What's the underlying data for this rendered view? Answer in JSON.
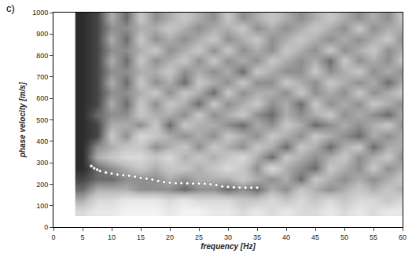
{
  "chart_data": {
    "type": "heatmap",
    "panel_label": "c)",
    "x_label": "frequency [Hz]",
    "y_label": "phase velocity [m/s]",
    "xlim": [
      0,
      60
    ],
    "ylim": [
      0,
      1000
    ],
    "xticks": [
      0,
      5,
      10,
      15,
      20,
      25,
      30,
      35,
      40,
      45,
      50,
      55,
      60
    ],
    "yticks": [
      0,
      100,
      200,
      300,
      400,
      500,
      600,
      700,
      800,
      900,
      1000
    ],
    "heatmap": {
      "x": [
        5,
        7.5,
        10,
        12.5,
        15,
        17.5,
        20,
        22.5,
        25,
        27.5,
        30,
        32.5,
        35,
        37.5,
        40,
        42.5,
        45,
        47.5,
        50,
        52.5,
        55,
        57.5,
        60
      ],
      "y": [
        75,
        125,
        175,
        225,
        275,
        325,
        375,
        425,
        475,
        525,
        575,
        625,
        675,
        725,
        775,
        825,
        875,
        925,
        975
      ],
      "z": [
        [
          0.3,
          0.2,
          0.2,
          0.1,
          0.1,
          0.1,
          0.2,
          0.1,
          0.1,
          0.2,
          0.2,
          0.3,
          0.2,
          0.3,
          0.2,
          0.3,
          0.3,
          0.2,
          0.3,
          0.2,
          0.3,
          0.2,
          0.2
        ],
        [
          0.5,
          0.3,
          0.3,
          0.2,
          0.2,
          0.2,
          0.3,
          0.2,
          0.3,
          0.3,
          0.3,
          0.4,
          0.4,
          0.3,
          0.4,
          0.3,
          0.4,
          0.3,
          0.4,
          0.3,
          0.3,
          0.4,
          0.3
        ],
        [
          0.7,
          0.5,
          0.5,
          0.5,
          0.6,
          0.6,
          0.6,
          0.7,
          0.6,
          0.6,
          0.7,
          0.6,
          0.7,
          0.5,
          0.6,
          0.4,
          0.5,
          0.6,
          0.5,
          0.4,
          0.5,
          0.4,
          0.5
        ],
        [
          0.8,
          0.7,
          0.7,
          0.6,
          0.6,
          0.6,
          0.5,
          0.6,
          0.5,
          0.5,
          0.5,
          0.4,
          0.5,
          0.6,
          0.5,
          0.7,
          0.4,
          0.5,
          0.6,
          0.5,
          0.6,
          0.5,
          0.4
        ],
        [
          0.9,
          0.7,
          0.6,
          0.5,
          0.4,
          0.5,
          0.4,
          0.4,
          0.5,
          0.4,
          0.3,
          0.4,
          0.6,
          0.3,
          0.5,
          0.6,
          0.7,
          0.4,
          0.5,
          0.6,
          0.4,
          0.6,
          0.5
        ],
        [
          0.9,
          0.5,
          0.4,
          0.3,
          0.3,
          0.4,
          0.3,
          0.5,
          0.4,
          0.5,
          0.4,
          0.3,
          0.5,
          0.7,
          0.4,
          0.5,
          0.6,
          0.5,
          0.4,
          0.6,
          0.5,
          0.4,
          0.6
        ],
        [
          0.9,
          0.6,
          0.5,
          0.4,
          0.4,
          0.6,
          0.5,
          0.4,
          0.6,
          0.4,
          0.5,
          0.6,
          0.4,
          0.5,
          0.7,
          0.4,
          0.5,
          0.7,
          0.5,
          0.4,
          0.7,
          0.5,
          0.5
        ],
        [
          0.9,
          0.8,
          0.4,
          0.6,
          0.3,
          0.4,
          0.5,
          0.6,
          0.5,
          0.6,
          0.4,
          0.5,
          0.6,
          0.4,
          0.5,
          0.6,
          0.4,
          0.5,
          0.6,
          0.7,
          0.5,
          0.6,
          0.5
        ],
        [
          0.9,
          0.8,
          0.5,
          0.5,
          0.6,
          0.4,
          0.7,
          0.4,
          0.5,
          0.5,
          0.6,
          0.7,
          0.5,
          0.6,
          0.4,
          0.5,
          0.7,
          0.6,
          0.5,
          0.6,
          0.5,
          0.4,
          0.6
        ],
        [
          0.9,
          0.7,
          0.6,
          0.6,
          0.4,
          0.5,
          0.5,
          0.6,
          0.4,
          0.6,
          0.5,
          0.4,
          0.6,
          0.7,
          0.5,
          0.6,
          0.5,
          0.4,
          0.6,
          0.5,
          0.6,
          0.7,
          0.5
        ],
        [
          0.9,
          0.8,
          0.5,
          0.7,
          0.4,
          0.6,
          0.4,
          0.5,
          0.7,
          0.4,
          0.6,
          0.5,
          0.4,
          0.6,
          0.5,
          0.7,
          0.4,
          0.6,
          0.5,
          0.6,
          0.4,
          0.5,
          0.6
        ],
        [
          0.9,
          0.8,
          0.6,
          0.6,
          0.5,
          0.4,
          0.6,
          0.4,
          0.5,
          0.7,
          0.4,
          0.6,
          0.5,
          0.5,
          0.6,
          0.4,
          0.6,
          0.5,
          0.6,
          0.4,
          0.6,
          0.5,
          0.4
        ],
        [
          0.9,
          0.8,
          0.5,
          0.7,
          0.4,
          0.6,
          0.5,
          0.7,
          0.4,
          0.5,
          0.6,
          0.4,
          0.6,
          0.6,
          0.4,
          0.5,
          0.6,
          0.4,
          0.5,
          0.6,
          0.5,
          0.7,
          0.5
        ],
        [
          0.9,
          0.8,
          0.6,
          0.6,
          0.5,
          0.5,
          0.4,
          0.6,
          0.5,
          0.6,
          0.5,
          0.7,
          0.4,
          0.5,
          0.6,
          0.6,
          0.4,
          0.6,
          0.5,
          0.4,
          0.6,
          0.5,
          0.6
        ],
        [
          0.9,
          0.8,
          0.5,
          0.7,
          0.4,
          0.6,
          0.5,
          0.4,
          0.6,
          0.4,
          0.6,
          0.5,
          0.6,
          0.4,
          0.5,
          0.6,
          0.5,
          0.7,
          0.4,
          0.6,
          0.5,
          0.6,
          0.4
        ],
        [
          0.9,
          0.8,
          0.6,
          0.6,
          0.5,
          0.4,
          0.6,
          0.5,
          0.4,
          0.6,
          0.4,
          0.6,
          0.5,
          0.6,
          0.4,
          0.5,
          0.6,
          0.4,
          0.6,
          0.5,
          0.4,
          0.6,
          0.5
        ],
        [
          0.9,
          0.8,
          0.5,
          0.7,
          0.4,
          0.6,
          0.5,
          0.6,
          0.5,
          0.4,
          0.6,
          0.5,
          0.4,
          0.6,
          0.5,
          0.4,
          0.5,
          0.6,
          0.5,
          0.6,
          0.5,
          0.4,
          0.6
        ],
        [
          0.9,
          0.8,
          0.6,
          0.6,
          0.5,
          0.5,
          0.4,
          0.5,
          0.6,
          0.5,
          0.5,
          0.4,
          0.6,
          0.5,
          0.6,
          0.5,
          0.4,
          0.5,
          0.6,
          0.4,
          0.6,
          0.5,
          0.5
        ],
        [
          0.9,
          0.8,
          0.5,
          0.7,
          0.4,
          0.6,
          0.5,
          0.4,
          0.5,
          0.6,
          0.4,
          0.6,
          0.5,
          0.4,
          0.5,
          0.6,
          0.5,
          0.4,
          0.5,
          0.6,
          0.5,
          0.6,
          0.4
        ]
      ],
      "zlim": [
        0,
        1
      ]
    },
    "series": [
      {
        "type": "scatter",
        "marker": "circle",
        "color": "#ffffff",
        "x": [
          6.5,
          7,
          7.5,
          8,
          9,
          10,
          11,
          12,
          13,
          14,
          15,
          16,
          17,
          18,
          19,
          20,
          21,
          22,
          23,
          24,
          25,
          26,
          27,
          28,
          29,
          30,
          31,
          32,
          33,
          34,
          35
        ],
        "values": [
          285,
          275,
          268,
          262,
          255,
          250,
          245,
          242,
          240,
          235,
          230,
          226,
          222,
          215,
          210,
          207,
          205,
          205,
          204,
          203,
          203,
          202,
          200,
          196,
          190,
          188,
          186,
          185,
          184,
          184,
          184
        ]
      }
    ]
  }
}
